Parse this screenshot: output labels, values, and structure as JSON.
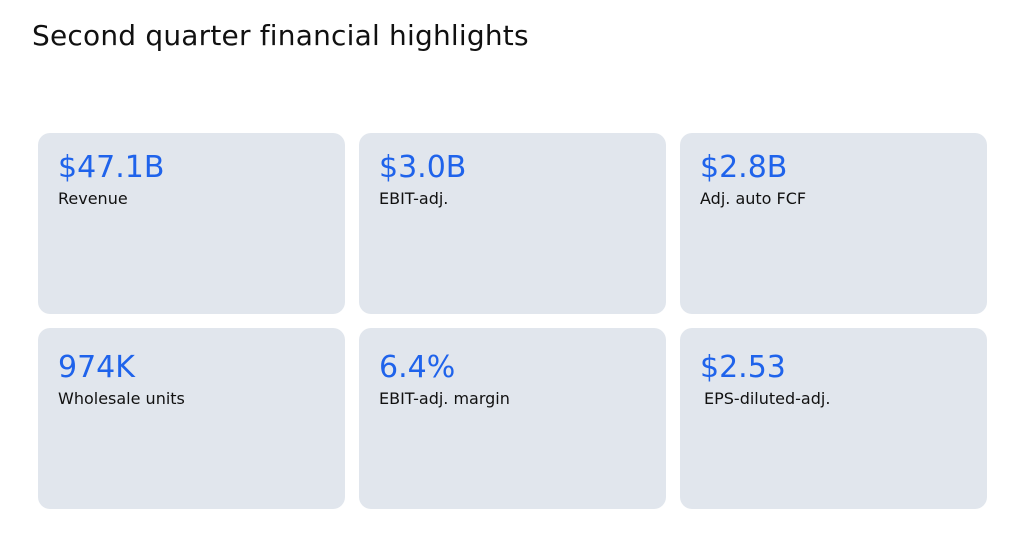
{
  "page": {
    "title": "Second quarter financial highlights"
  },
  "colors": {
    "value_accent": "#1f63eb",
    "card_background": "#e1e6ed",
    "text": "#111111"
  },
  "metrics": [
    {
      "value": "$47.1B",
      "label": "Revenue"
    },
    {
      "value": "$3.0B",
      "label": "EBIT-adj."
    },
    {
      "value": "$2.8B",
      "label": "Adj. auto FCF"
    },
    {
      "value": "974K",
      "label": "Wholesale units"
    },
    {
      "value": "6.4%",
      "label": "EBIT-adj. margin"
    },
    {
      "value": "$2.53",
      "label": "EPS-diluted-adj."
    }
  ]
}
